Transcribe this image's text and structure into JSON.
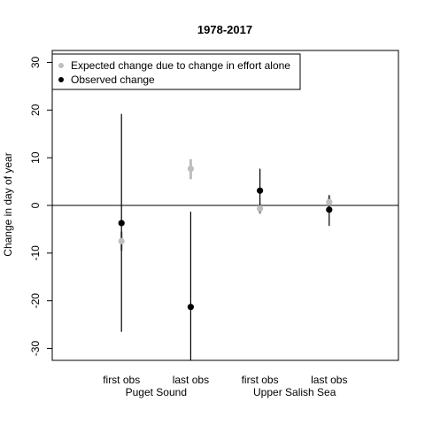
{
  "chart_data": {
    "type": "scatter",
    "title": "1978-2017",
    "xlabel": "",
    "ylabel": "Change in day of year",
    "ylim": [
      -32.5,
      32.5
    ],
    "yticks": [
      -30,
      -20,
      -10,
      0,
      10,
      20,
      30
    ],
    "categories": [
      "first obs",
      "last obs",
      "first obs",
      "last obs"
    ],
    "groups": [
      {
        "label": "Puget Sound",
        "categories": [
          0,
          1
        ]
      },
      {
        "label": "Upper Salish Sea",
        "categories": [
          2,
          3
        ]
      }
    ],
    "reference_line": 0,
    "grid": false,
    "legend": "top-left",
    "series": [
      {
        "name": "Expected change due to change in effort alone",
        "color": "#bebebe",
        "values": [
          -7.5,
          7.7,
          -0.7,
          0.7
        ],
        "lower": [
          -9.5,
          5.5,
          -1.8,
          -0.5
        ],
        "upper": [
          -5.5,
          9.7,
          0.4,
          1.9
        ]
      },
      {
        "name": "Observed change",
        "color": "#000000",
        "values": [
          -3.7,
          -21.3,
          3.1,
          -0.9
        ],
        "lower": [
          -26.5,
          -33,
          -1.5,
          -4.3
        ],
        "upper": [
          19.2,
          -1.3,
          7.7,
          2.2
        ]
      }
    ]
  }
}
